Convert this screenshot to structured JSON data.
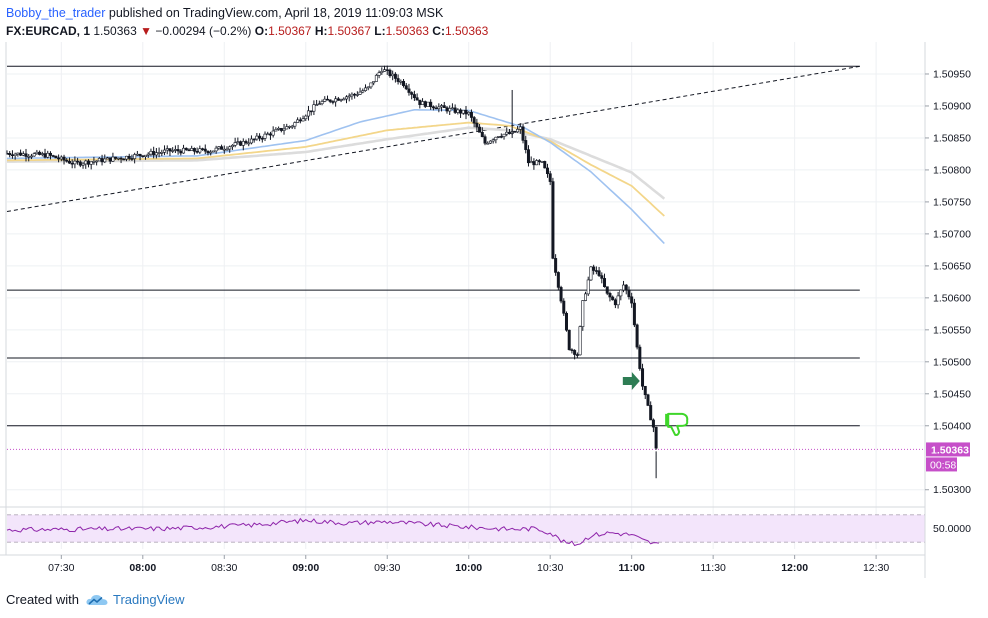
{
  "header": {
    "author": "Bobby_the_trader",
    "published": "published on TradingView.com, April 18, 2019 11:09:03 MSK",
    "symbol": "FX:EURCAD, 1",
    "last": "1.50363",
    "change": "−0.00294 (−0.2%)",
    "o_label": "O:",
    "o": "1.50367",
    "h_label": "H:",
    "h": "1.50367",
    "l_label": "L:",
    "l": "1.50363",
    "c_label": "C:",
    "c": "1.50363"
  },
  "footer": {
    "created_with": "Created with",
    "brand": "TradingView"
  },
  "colors": {
    "candle": "#131722",
    "ema_fast": "#9fc2f0",
    "ema_mid": "#f3d68a",
    "ema_slow": "#dcdcdc",
    "rsi_line": "#8e24aa",
    "rsi_band": "#f3e5fb",
    "price_tag": "#c64fc9",
    "arrow": "#2e7d54",
    "thumb": "#3fd62a"
  },
  "icons": {
    "arrow": "right-arrow-icon",
    "thumb": "thumbs-down-icon",
    "logo": "tradingview-cloud-logo"
  },
  "chart_data": {
    "type": "candlestick",
    "instrument": "FX:EURCAD",
    "interval": "1",
    "y_ticks": [
      "1.50950",
      "1.50900",
      "1.50850",
      "1.50800",
      "1.50750",
      "1.50700",
      "1.50650",
      "1.50600",
      "1.50550",
      "1.50500",
      "1.50450",
      "1.50400",
      "1.50363",
      "1.50300"
    ],
    "y_tick_values": [
      1.5095,
      1.509,
      1.5085,
      1.508,
      1.5075,
      1.507,
      1.5065,
      1.506,
      1.5055,
      1.505,
      1.5045,
      1.504,
      1.50363,
      1.503
    ],
    "ylim": [
      1.50273,
      1.51
    ],
    "x_ticks": [
      "07:30",
      "08:00",
      "08:30",
      "09:00",
      "09:30",
      "10:00",
      "10:30",
      "11:00",
      "11:30",
      "12:00",
      "12:30"
    ],
    "x_tick_minutes": [
      450,
      480,
      510,
      540,
      570,
      600,
      630,
      660,
      690,
      720,
      750
    ],
    "xlim": [
      430,
      768
    ],
    "last_price": 1.50363,
    "last_price_label": "1.50363",
    "countdown": "00:58",
    "horizontal_levels": [
      1.50962,
      1.50612,
      1.50506,
      1.504
    ],
    "horizontal_level_end_minute": 744,
    "trendline": {
      "from": [
        430,
        1.50735
      ],
      "to": [
        744,
        1.50962
      ]
    },
    "path": [
      [
        430,
        1.50826
      ],
      [
        445,
        1.50823
      ],
      [
        455,
        1.5081
      ],
      [
        470,
        1.50818
      ],
      [
        490,
        1.5083
      ],
      [
        505,
        1.5083
      ],
      [
        520,
        1.50846
      ],
      [
        535,
        1.5087
      ],
      [
        545,
        1.50905
      ],
      [
        558,
        1.50918
      ],
      [
        563,
        1.50928
      ],
      [
        568,
        1.50958
      ],
      [
        576,
        1.50935
      ],
      [
        582,
        1.50905
      ],
      [
        592,
        1.50895
      ],
      [
        600,
        1.50888
      ],
      [
        606,
        1.50842
      ],
      [
        611,
        1.50855
      ],
      [
        616,
        1.50857
      ],
      [
        619,
        1.50865
      ],
      [
        622,
        1.50812
      ],
      [
        627,
        1.5081
      ],
      [
        630,
        1.50782
      ],
      [
        631,
        1.50665
      ],
      [
        634,
        1.50598
      ],
      [
        637,
        1.50522
      ],
      [
        640,
        1.50512
      ],
      [
        642,
        1.50592
      ],
      [
        645,
        1.50645
      ],
      [
        648,
        1.50638
      ],
      [
        651,
        1.50605
      ],
      [
        654,
        1.50592
      ],
      [
        657,
        1.5062
      ],
      [
        660,
        1.50595
      ],
      [
        662,
        1.50522
      ],
      [
        664,
        1.50462
      ],
      [
        666,
        1.50428
      ],
      [
        668,
        1.50398
      ],
      [
        669,
        1.50363
      ]
    ],
    "ema_fast": [
      [
        430,
        1.50818
      ],
      [
        500,
        1.50822
      ],
      [
        540,
        1.50846
      ],
      [
        560,
        1.50875
      ],
      [
        580,
        1.50894
      ],
      [
        600,
        1.50893
      ],
      [
        610,
        1.5088
      ],
      [
        620,
        1.50867
      ],
      [
        630,
        1.50843
      ],
      [
        645,
        1.50797
      ],
      [
        660,
        1.50738
      ],
      [
        672,
        1.50685
      ]
    ],
    "ema_mid": [
      [
        430,
        1.50815
      ],
      [
        500,
        1.50818
      ],
      [
        540,
        1.50836
      ],
      [
        570,
        1.50862
      ],
      [
        600,
        1.50874
      ],
      [
        615,
        1.50869
      ],
      [
        630,
        1.50845
      ],
      [
        645,
        1.50808
      ],
      [
        660,
        1.50775
      ],
      [
        672,
        1.50728
      ]
    ],
    "ema_slow": [
      [
        430,
        1.50813
      ],
      [
        500,
        1.50815
      ],
      [
        540,
        1.50828
      ],
      [
        570,
        1.50848
      ],
      [
        600,
        1.50866
      ],
      [
        615,
        1.50862
      ],
      [
        630,
        1.50848
      ],
      [
        645,
        1.50822
      ],
      [
        660,
        1.50796
      ],
      [
        672,
        1.50755
      ]
    ],
    "rsi": {
      "tick_label": "50.0000",
      "tick_value": 50,
      "ylim": [
        20,
        80
      ],
      "band": [
        30,
        70
      ],
      "values": [
        [
          430,
          48
        ],
        [
          460,
          49
        ],
        [
          490,
          50
        ],
        [
          520,
          55
        ],
        [
          540,
          62
        ],
        [
          555,
          58
        ],
        [
          570,
          60
        ],
        [
          585,
          56
        ],
        [
          600,
          52
        ],
        [
          615,
          49
        ],
        [
          625,
          50
        ],
        [
          630,
          44
        ],
        [
          635,
          30
        ],
        [
          640,
          27
        ],
        [
          645,
          40
        ],
        [
          652,
          44
        ],
        [
          660,
          41
        ],
        [
          664,
          33
        ],
        [
          668,
          28
        ],
        [
          670,
          27
        ]
      ]
    }
  }
}
